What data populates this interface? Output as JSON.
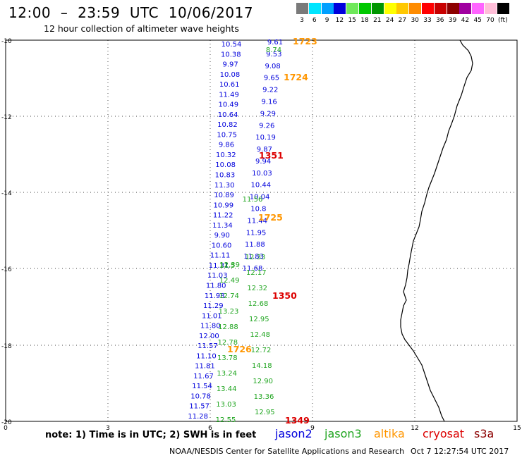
{
  "header": {
    "title": "12:00  –  23:59  UTC  10/06/2017",
    "subtitle": "12 hour collection of altimeter wave heights"
  },
  "color_scale": {
    "unit": "(ft)",
    "swatches": [
      {
        "label": "3",
        "color": "#7a7a7a"
      },
      {
        "label": "6",
        "color": "#00e5ff"
      },
      {
        "label": "9",
        "color": "#00a0ff"
      },
      {
        "label": "12",
        "color": "#0000dc"
      },
      {
        "label": "15",
        "color": "#6fe85a"
      },
      {
        "label": "18",
        "color": "#00c800"
      },
      {
        "label": "21",
        "color": "#009600"
      },
      {
        "label": "24",
        "color": "#ffff00"
      },
      {
        "label": "27",
        "color": "#ffc800"
      },
      {
        "label": "30",
        "color": "#ff8c00"
      },
      {
        "label": "33",
        "color": "#ff0000"
      },
      {
        "label": "36",
        "color": "#c80000"
      },
      {
        "label": "39",
        "color": "#8c0000"
      },
      {
        "label": "42",
        "color": "#a000a0"
      },
      {
        "label": "45",
        "color": "#ff64ff"
      },
      {
        "label": "70",
        "color": "#ffbed8"
      },
      {
        "label": "",
        "color": "#000000"
      }
    ]
  },
  "axes": {
    "lat_labels": [
      "-10",
      "-12",
      "-14",
      "-16",
      "-18",
      "-20"
    ],
    "lon_labels": [
      "0",
      "3",
      "6",
      "9",
      "12",
      "15"
    ]
  },
  "satellites": {
    "jason2": {
      "label": "jason2",
      "color": "#0000dc"
    },
    "jason3": {
      "label": "jason3",
      "color": "#1fa51f"
    },
    "altika": {
      "label": "altika",
      "color": "#ff9600"
    },
    "cryosat": {
      "label": "cryosat",
      "color": "#dc0000"
    },
    "s3a": {
      "label": "s3a",
      "color": "#8c0000"
    }
  },
  "track_labels": [
    {
      "text": "1723",
      "sat": "altika"
    },
    {
      "text": "1724",
      "sat": "altika"
    },
    {
      "text": "1351",
      "sat": "cryosat"
    },
    {
      "text": "1725",
      "sat": "altika"
    },
    {
      "text": "1350",
      "sat": "cryosat"
    },
    {
      "text": "1726",
      "sat": "altika"
    },
    {
      "text": "1349",
      "sat": "cryosat"
    }
  ],
  "wave_heights": {
    "jason2": [
      "10.54",
      "10.38",
      "9.97",
      "10.08",
      "10.61",
      "11.49",
      "10.49",
      "10.64",
      "10.82",
      "10.75",
      "9.86",
      "10.32",
      "10.08",
      "10.83",
      "11.30",
      "10.89",
      "10.99",
      "11.22",
      "11.34",
      "9.90",
      "10.60",
      "11.11",
      "11.31",
      "11.03",
      "11.80",
      "11.98",
      "11.29",
      "11.01",
      "11.80",
      "12.00",
      "11.57",
      "11.10",
      "11.81",
      "11.67",
      "11.54",
      "10.78",
      "11.57",
      "11.28"
    ],
    "jason2_track_b": [
      "9.61",
      "9.53",
      "9.08",
      "9.65",
      "9.22",
      "9.16",
      "9.29",
      "9.26",
      "10.19",
      "9.87",
      "9.94",
      "10.03",
      "10.44",
      "10.04",
      "10.8",
      "11.44",
      "11.95",
      "11.88",
      "11.83",
      "11.68"
    ],
    "jason3": [
      "8.74",
      "11.56",
      "11.5",
      "12.33",
      "12.39",
      "12.17",
      "12.49",
      "12.32",
      "12.74",
      "12.68",
      "13.23",
      "12.95",
      "12.88",
      "12.48",
      "12.78",
      "12.72",
      "13.78",
      "14.18",
      "13.24",
      "12.90",
      "13.44",
      "13.36",
      "13.03",
      "12.95",
      "12.55"
    ]
  },
  "footer": {
    "note": "note:  1) Time is in UTC;  2) SWH is in feet",
    "credit": "NOAA/NESDIS Center for Satellite Applications and Research",
    "timestamp": "Oct  7 12:27:54 UTC 2017"
  }
}
